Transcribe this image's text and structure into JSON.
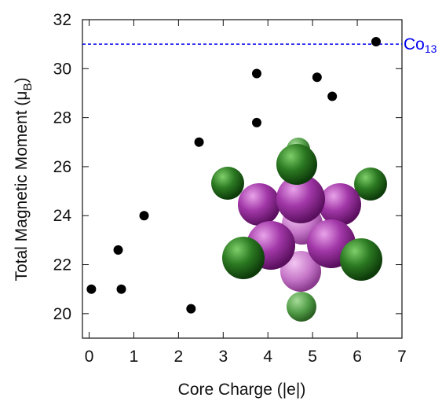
{
  "chart_data": {
    "type": "scatter",
    "xlabel": "Core Charge (|e|)",
    "ylabel_parts": [
      "Total Magnetic Moment (μ",
      "B",
      ")"
    ],
    "x": [
      0.05,
      0.72,
      0.65,
      1.23,
      2.28,
      2.46,
      3.75,
      3.75,
      5.1,
      5.44,
      6.42
    ],
    "values": [
      21.0,
      21.0,
      22.6,
      24.0,
      20.2,
      27.0,
      27.8,
      29.8,
      29.65,
      28.87,
      31.1
    ],
    "color": "#000000",
    "xlim": [
      -0.15,
      7
    ],
    "xticks": [
      0,
      1,
      2,
      3,
      4,
      5,
      6,
      7
    ],
    "ylim": [
      19,
      32
    ],
    "yticks": [
      20,
      22,
      24,
      26,
      28,
      30,
      32
    ],
    "reference_line": {
      "value": 31,
      "label": "Co",
      "label_subscript": "13",
      "color": "#0000ee"
    }
  }
}
